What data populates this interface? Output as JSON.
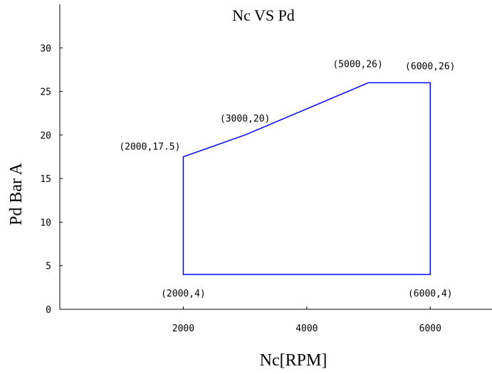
{
  "chart_data": {
    "type": "line",
    "title": "Nc VS Pd",
    "xlabel": "Nc[RPM]",
    "ylabel": "Pd Bar A",
    "xlim": [
      0,
      7000
    ],
    "ylim": [
      0,
      35
    ],
    "x_ticks": [
      2000,
      4000,
      6000
    ],
    "y_ticks": [
      0,
      5,
      10,
      15,
      20,
      25,
      30
    ],
    "grid": false,
    "series": [
      {
        "color": "#0000ff",
        "closed": true,
        "points": [
          {
            "x": 2000,
            "y": 4
          },
          {
            "x": 2000,
            "y": 17.5
          },
          {
            "x": 3000,
            "y": 20
          },
          {
            "x": 5000,
            "y": 26
          },
          {
            "x": 6000,
            "y": 26
          },
          {
            "x": 6000,
            "y": 4
          }
        ]
      }
    ],
    "annotations": [
      {
        "text": "(2000,17.5)",
        "x": 2000,
        "y": 17.5,
        "anchor": "left"
      },
      {
        "text": "(3000,20)",
        "x": 3000,
        "y": 20,
        "anchor": "above"
      },
      {
        "text": "(5000,26)",
        "x": 5000,
        "y": 26,
        "anchor": "above-left"
      },
      {
        "text": "(6000,26)",
        "x": 6000,
        "y": 26,
        "anchor": "above"
      },
      {
        "text": "(2000,4)",
        "x": 2000,
        "y": 4,
        "anchor": "below"
      },
      {
        "text": "(6000,4)",
        "x": 6000,
        "y": 4,
        "anchor": "below"
      }
    ]
  }
}
